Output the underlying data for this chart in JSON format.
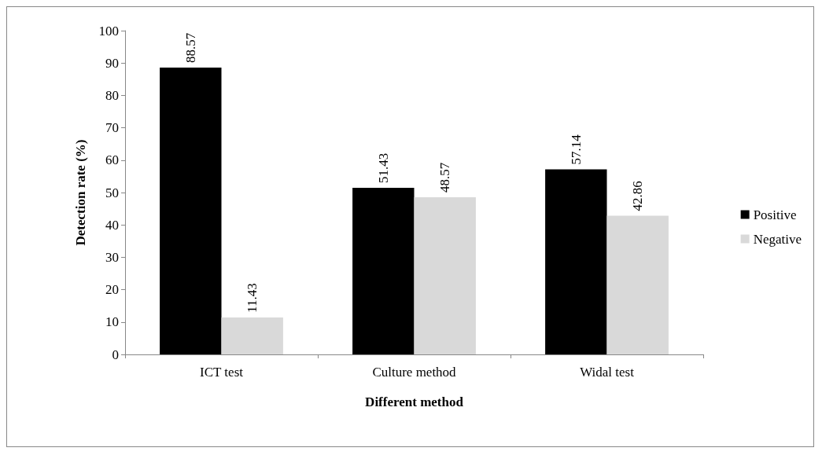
{
  "chart_data": {
    "type": "bar",
    "xlabel": "Different method",
    "ylabel": "Detection rate (%)",
    "categories": [
      "ICT test",
      "Culture method",
      "Widal test"
    ],
    "series": [
      {
        "name": "Positive",
        "color": "#000000",
        "values": [
          88.57,
          51.43,
          57.14
        ]
      },
      {
        "name": "Negative",
        "color": "#d9d9d9",
        "values": [
          11.43,
          48.57,
          42.86
        ]
      }
    ],
    "ylim": [
      0,
      100
    ],
    "yticks": [
      0,
      10,
      20,
      30,
      40,
      50,
      60,
      70,
      80,
      90,
      100
    ],
    "grid": false,
    "legend": "right",
    "data_labels": true
  }
}
